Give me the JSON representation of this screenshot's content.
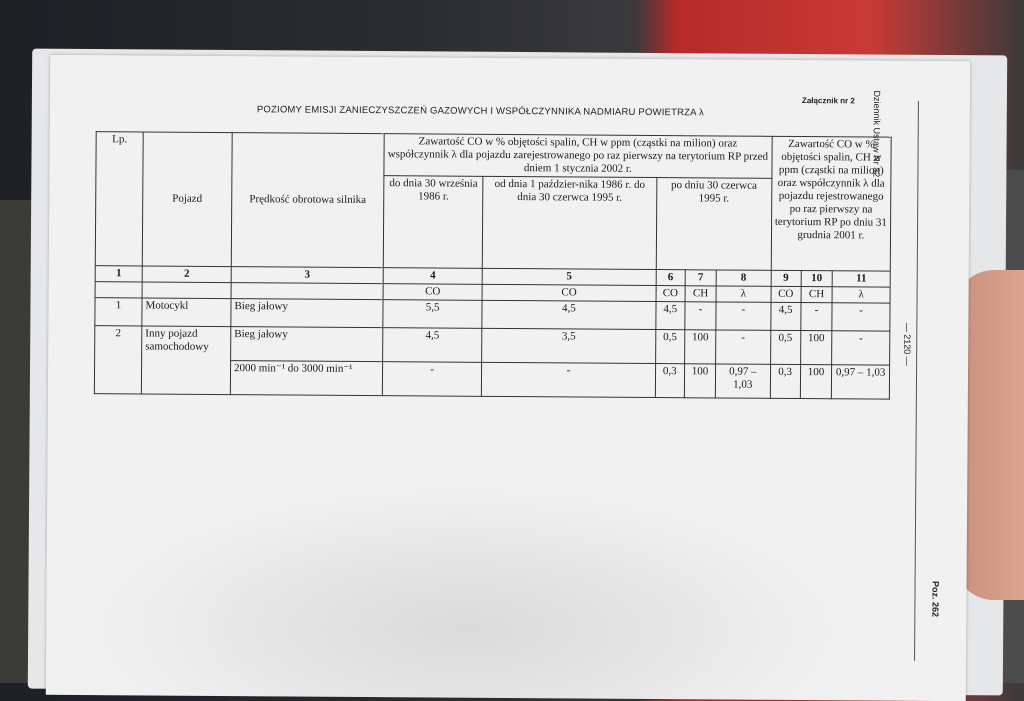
{
  "document": {
    "title": "POZIOMY EMISJI ZANIECZYSZCZEŃ GAZOWYCH I WSPÓŁCZYNNIKA NADMIARU POWIETRZA λ",
    "annex": "Załącznik nr 2",
    "journal": "Dziennik Ustaw Nr 32",
    "page_number": "— 2120 —",
    "position": "Poz. 262"
  },
  "table": {
    "col_lp": "Lp.",
    "col_vehicle": "Pojazd",
    "col_speed": "Prędkość obrotowa silnika",
    "group_before": "Zawartość CO w % objętości spalin, CH w ppm (cząstki na milion) oraz współczynnik λ dla pojazdu zarejestrowanego po raz pierwszy na terytorium RP przed dniem 1 stycznia 2002 r.",
    "group_after": "Zawartość CO w % objętości spalin, CH w ppm (cząstki na milion) oraz współczynnik λ dla pojazdu rejestrowanego po raz pierwszy na terytorium RP po dniu 31 grudnia 2001 r.",
    "period_1": "do dnia 30 września 1986 r.",
    "period_2": "od dnia 1 paździer-nika 1986 r. do dnia 30 czerwca 1995 r.",
    "period_3": "po dniu 30 czerwca 1995 r.",
    "column_numbers": [
      "1",
      "2",
      "3",
      "4",
      "5",
      "6",
      "7",
      "8",
      "9",
      "10",
      "11"
    ],
    "units": [
      "",
      "",
      "",
      "CO",
      "CO",
      "CO",
      "CH",
      "λ",
      "CO",
      "CH",
      "λ"
    ],
    "rows": [
      {
        "lp": "1",
        "vehicle": "Motocykl",
        "speed": "Bieg jałowy",
        "values": [
          "5,5",
          "4,5",
          "4,5",
          "-",
          "-",
          "4,5",
          "-",
          "-"
        ]
      },
      {
        "lp": "2",
        "vehicle": "Inny pojazd samochodowy",
        "speed": "Bieg jałowy",
        "values": [
          "4,5",
          "3,5",
          "0,5",
          "100",
          "-",
          "0,5",
          "100",
          "-"
        ]
      },
      {
        "speed": "2000 min⁻¹ do 3000 min⁻¹",
        "values": [
          "-",
          "-",
          "0,3",
          "100",
          "0,97 – 1,03",
          "0,3",
          "100",
          "0,97 – 1,03"
        ]
      }
    ]
  }
}
